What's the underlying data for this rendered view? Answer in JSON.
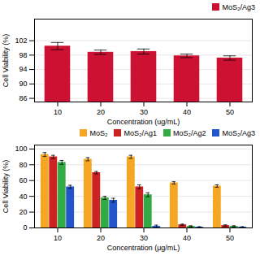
{
  "chart_data": [
    {
      "type": "bar",
      "categories": [
        "10",
        "20",
        "30",
        "40",
        "50"
      ],
      "xlabel": "Concentration (ug/mL)",
      "ylabel": "Cell Viability (%)",
      "ylim": [
        85,
        108
      ],
      "yticks": [
        86,
        90,
        94,
        98,
        102
      ],
      "grid": true,
      "legend": "upper right",
      "series": [
        {
          "name": "MoS₂/Ag3",
          "color": "#cc1133",
          "values": [
            100.5,
            98.8,
            99.0,
            97.8,
            97.2
          ],
          "errors": [
            1.0,
            0.6,
            0.7,
            0.5,
            0.6
          ]
        }
      ]
    },
    {
      "type": "bar",
      "categories": [
        "10",
        "20",
        "30",
        "40",
        "50"
      ],
      "xlabel": "Concentration (μg/mL)",
      "ylabel": "Cell Viability (%)",
      "ylim": [
        0,
        105
      ],
      "yticks": [
        0,
        20,
        40,
        60,
        80,
        100
      ],
      "grid": true,
      "legend": "upper right",
      "series": [
        {
          "name": "MoS₂",
          "color": "#f5a623",
          "values": [
            93,
            87,
            90,
            57,
            53
          ],
          "errors": [
            2.5,
            2.0,
            2.0,
            1.5,
            1.5
          ]
        },
        {
          "name": "MoS₂/Ag1",
          "color": "#cc2222",
          "values": [
            90,
            70,
            52,
            4,
            3
          ],
          "errors": [
            2.0,
            1.5,
            2.5,
            0.8,
            0.8
          ]
        },
        {
          "name": "MoS₂/Ag2",
          "color": "#33aa44",
          "values": [
            83,
            38,
            42,
            2,
            2
          ],
          "errors": [
            2.5,
            2.0,
            2.5,
            0.7,
            0.7
          ]
        },
        {
          "name": "MoS₂/Ag3",
          "color": "#2255cc",
          "values": [
            52,
            35,
            2,
            1,
            1
          ],
          "errors": [
            2.0,
            2.5,
            1.5,
            0.5,
            0.5
          ]
        }
      ]
    }
  ]
}
